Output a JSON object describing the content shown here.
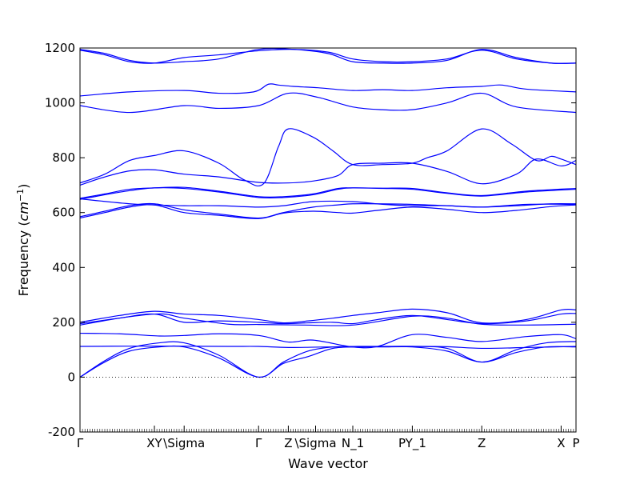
{
  "chart_data": {
    "type": "line",
    "title": "",
    "xlabel": "Wave vector",
    "ylabel": "Frequency ($cm^{-1}$)",
    "ylabel_parts": {
      "prefix": "Frequency (",
      "unit": "cm",
      "exponent": "−1",
      "suffix": ")"
    },
    "ylim": [
      -200,
      1200
    ],
    "yticks": [
      -200,
      0,
      200,
      400,
      600,
      800,
      1000,
      1200
    ],
    "xlim": [
      0,
      100
    ],
    "xticks": [
      {
        "x": 0,
        "label": "Γ"
      },
      {
        "x": 15,
        "label": "XY"
      },
      {
        "x": 21,
        "label": "\\Sigma"
      },
      {
        "x": 36,
        "label": "Γ"
      },
      {
        "x": 42,
        "label": "Z"
      },
      {
        "x": 47.5,
        "label": "\\Sigma"
      },
      {
        "x": 55,
        "label": "N_1"
      },
      {
        "x": 67,
        "label": "PY_1"
      },
      {
        "x": 81,
        "label": "Z"
      },
      {
        "x": 97,
        "label": "X"
      },
      {
        "x": 100,
        "label": "P"
      }
    ],
    "zero_line": true,
    "line_color": "#0000ff",
    "series": [
      {
        "x": [
          0,
          5,
          10,
          16,
          21,
          28,
          36,
          41,
          46,
          51,
          56,
          61,
          67,
          74,
          81,
          88,
          94,
          100
        ],
        "values": [
          0,
          55,
          95,
          110,
          110,
          70,
          0,
          50,
          75,
          105,
          110,
          110,
          110,
          95,
          55,
          90,
          110,
          110
        ]
      },
      {
        "x": [
          0,
          5,
          10,
          16,
          21,
          28,
          36,
          41,
          46,
          51,
          56,
          61,
          67,
          74,
          81,
          88,
          94,
          100
        ],
        "values": [
          0,
          60,
          105,
          125,
          125,
          80,
          0,
          55,
          95,
          110,
          112,
          112,
          112,
          105,
          55,
          100,
          125,
          130
        ]
      },
      {
        "x": [
          0,
          10,
          20,
          30,
          36,
          42,
          50,
          60,
          67,
          74,
          81,
          90,
          100
        ],
        "values": [
          112,
          113,
          113,
          112,
          112,
          108,
          110,
          111,
          112,
          111,
          105,
          108,
          112
        ]
      },
      {
        "x": [
          0,
          8,
          16,
          21,
          28,
          36,
          42,
          47,
          55,
          60,
          67,
          74,
          81,
          90,
          97,
          100
        ],
        "values": [
          160,
          158,
          150,
          152,
          158,
          152,
          128,
          135,
          110,
          112,
          155,
          145,
          130,
          148,
          155,
          140
        ]
      },
      {
        "x": [
          0,
          8,
          15,
          21,
          28,
          36,
          41,
          46,
          51,
          55,
          60,
          67,
          74,
          81,
          90,
          97,
          100
        ],
        "values": [
          190,
          215,
          230,
          200,
          205,
          200,
          195,
          198,
          200,
          195,
          210,
          225,
          210,
          195,
          205,
          230,
          232
        ]
      },
      {
        "x": [
          0,
          8,
          15,
          21,
          28,
          36,
          41,
          46,
          51,
          55,
          60,
          67,
          74,
          81,
          90,
          97,
          100
        ],
        "values": [
          200,
          225,
          240,
          230,
          225,
          210,
          198,
          205,
          215,
          225,
          235,
          248,
          235,
          198,
          210,
          245,
          245
        ]
      },
      {
        "x": [
          0,
          15,
          21,
          30,
          36,
          45,
          55,
          67,
          74,
          81,
          90,
          100
        ],
        "values": [
          195,
          230,
          215,
          193,
          192,
          190,
          190,
          222,
          215,
          193,
          190,
          193
        ]
      },
      {
        "x": [
          0,
          5,
          10,
          15,
          21,
          28,
          36,
          41,
          47,
          52,
          55,
          60,
          67,
          74,
          81,
          88,
          95,
          100
        ],
        "values": [
          580,
          600,
          620,
          628,
          600,
          590,
          578,
          598,
          605,
          600,
          598,
          608,
          620,
          612,
          600,
          608,
          622,
          628
        ]
      },
      {
        "x": [
          0,
          5,
          10,
          15,
          21,
          28,
          36,
          41,
          47,
          52,
          55,
          60,
          67,
          74,
          81,
          88,
          95,
          100
        ],
        "values": [
          585,
          605,
          625,
          632,
          610,
          595,
          580,
          600,
          620,
          628,
          632,
          632,
          630,
          625,
          620,
          625,
          632,
          632
        ]
      },
      {
        "x": [
          0,
          10,
          15,
          21,
          28,
          36,
          41,
          47,
          55,
          61,
          67,
          74,
          81,
          90,
          100
        ],
        "values": [
          650,
          632,
          628,
          625,
          625,
          620,
          625,
          640,
          640,
          630,
          625,
          625,
          620,
          630,
          630
        ]
      },
      {
        "x": [
          0,
          5,
          10,
          15,
          21,
          28,
          36,
          41,
          47,
          52,
          55,
          61,
          67,
          74,
          81,
          90,
          100
        ],
        "values": [
          648,
          665,
          680,
          690,
          688,
          675,
          655,
          655,
          665,
          685,
          690,
          688,
          685,
          670,
          660,
          675,
          685
        ]
      },
      {
        "x": [
          0,
          5,
          10,
          15,
          21,
          28,
          36,
          41,
          47,
          52,
          55,
          61,
          67,
          74,
          81,
          90,
          100
        ],
        "values": [
          652,
          668,
          685,
          690,
          692,
          678,
          658,
          658,
          668,
          688,
          690,
          689,
          688,
          672,
          662,
          678,
          688
        ]
      },
      {
        "x": [
          0,
          5,
          10,
          15,
          21,
          28,
          36,
          42,
          47,
          52,
          55,
          61,
          67,
          74,
          81,
          88,
          92,
          97,
          100
        ],
        "values": [
          700,
          730,
          752,
          756,
          740,
          730,
          710,
          708,
          715,
          735,
          775,
          780,
          780,
          750,
          705,
          740,
          795,
          770,
          790
        ]
      },
      {
        "x": [
          0,
          5,
          10,
          15,
          21,
          28,
          33,
          37,
          40,
          42,
          47,
          51,
          55,
          61,
          67,
          70,
          74,
          81,
          87,
          92,
          95,
          97,
          100
        ],
        "values": [
          708,
          740,
          790,
          808,
          825,
          780,
          720,
          705,
          840,
          905,
          875,
          825,
          775,
          775,
          780,
          800,
          825,
          905,
          850,
          790,
          805,
          795,
          775
        ]
      },
      {
        "x": [
          0,
          10,
          21,
          28,
          36,
          42,
          48,
          55,
          61,
          67,
          74,
          81,
          88,
          100
        ],
        "values": [
          990,
          965,
          990,
          980,
          990,
          1035,
          1020,
          985,
          975,
          975,
          1000,
          1035,
          985,
          965
        ]
      },
      {
        "x": [
          0,
          10,
          21,
          28,
          35,
          38,
          40,
          43,
          48,
          55,
          61,
          67,
          74,
          81,
          85,
          90,
          100
        ],
        "values": [
          1025,
          1040,
          1045,
          1035,
          1040,
          1068,
          1065,
          1060,
          1055,
          1045,
          1048,
          1045,
          1055,
          1060,
          1065,
          1050,
          1040
        ]
      },
      {
        "x": [
          0,
          5,
          10,
          15,
          21,
          28,
          36,
          43,
          50,
          55,
          61,
          67,
          74,
          81,
          88,
          95,
          100
        ],
        "values": [
          1195,
          1180,
          1155,
          1145,
          1150,
          1160,
          1195,
          1195,
          1180,
          1150,
          1145,
          1145,
          1155,
          1195,
          1165,
          1145,
          1145
        ]
      },
      {
        "x": [
          0,
          5,
          10,
          15,
          21,
          28,
          36,
          43,
          50,
          55,
          61,
          67,
          74,
          81,
          88,
          95,
          100
        ],
        "values": [
          1192,
          1175,
          1150,
          1145,
          1165,
          1175,
          1190,
          1195,
          1185,
          1160,
          1150,
          1150,
          1160,
          1192,
          1160,
          1145,
          1145
        ]
      }
    ]
  }
}
